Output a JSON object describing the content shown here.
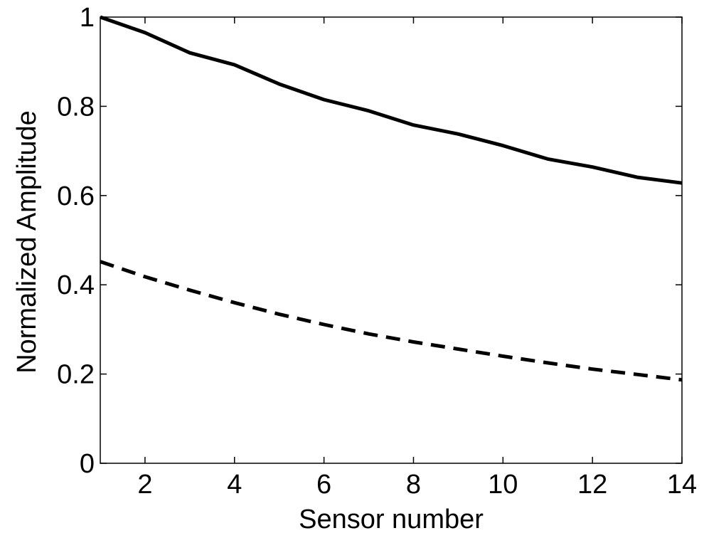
{
  "chart_data": {
    "type": "line",
    "title": "",
    "xlabel": "Sensor number",
    "ylabel": "Normalized Amplitude",
    "xlim": [
      1,
      14
    ],
    "ylim": [
      0,
      1
    ],
    "xticks": [
      2,
      4,
      6,
      8,
      10,
      12,
      14
    ],
    "yticks": [
      0,
      0.2,
      0.4,
      0.6,
      0.8,
      1
    ],
    "grid": false,
    "legend": "none",
    "x": [
      1,
      2,
      3,
      4,
      5,
      6,
      7,
      8,
      9,
      10,
      11,
      12,
      13,
      14
    ],
    "series": [
      {
        "style": "solid",
        "color": "#000000",
        "values": [
          1.0,
          0.965,
          0.92,
          0.893,
          0.85,
          0.815,
          0.79,
          0.758,
          0.738,
          0.712,
          0.682,
          0.664,
          0.641,
          0.628
        ]
      },
      {
        "style": "dashed",
        "color": "#000000",
        "values": [
          0.452,
          0.418,
          0.388,
          0.36,
          0.334,
          0.311,
          0.29,
          0.272,
          0.256,
          0.24,
          0.225,
          0.211,
          0.199,
          0.187
        ]
      }
    ]
  }
}
